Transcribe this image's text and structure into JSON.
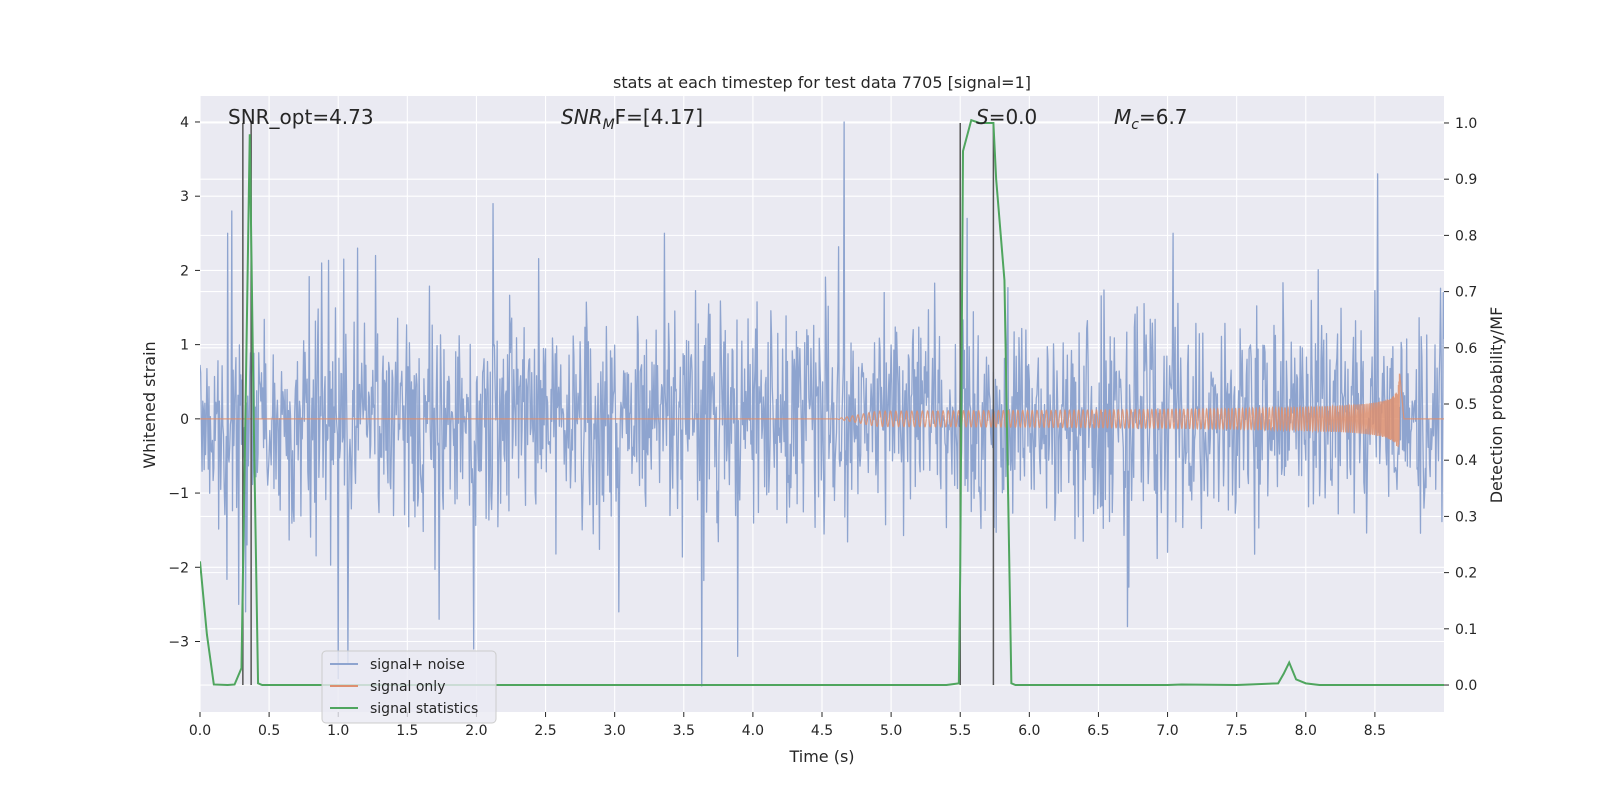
{
  "chart_data": {
    "type": "line",
    "title": "stats at each timestep for test data 7705 [signal=1]",
    "xlabel": "Time (s)",
    "ylabel": "Whitened strain",
    "y2label": "Detection probability/MF",
    "xlim": [
      0.0,
      9.0
    ],
    "ylim": [
      -3.95,
      4.35
    ],
    "y2lim": [
      -0.048,
      1.048
    ],
    "x_ticks": [
      "0.0",
      "0.5",
      "1.0",
      "1.5",
      "2.0",
      "2.5",
      "3.0",
      "3.5",
      "4.0",
      "4.5",
      "5.0",
      "5.5",
      "6.0",
      "6.5",
      "7.0",
      "7.5",
      "8.0",
      "8.5"
    ],
    "x_tick_values": [
      0.0,
      0.5,
      1.0,
      1.5,
      2.0,
      2.5,
      3.0,
      3.5,
      4.0,
      4.5,
      5.0,
      5.5,
      6.0,
      6.5,
      7.0,
      7.5,
      8.0,
      8.5
    ],
    "y_ticks": [
      "−3",
      "−2",
      "−1",
      "0",
      "1",
      "2",
      "3",
      "4"
    ],
    "y_tick_values": [
      -3,
      -2,
      -1,
      0,
      1,
      2,
      3,
      4
    ],
    "y2_ticks": [
      "0.0",
      "0.1",
      "0.2",
      "0.3",
      "0.4",
      "0.5",
      "0.6",
      "0.7",
      "0.8",
      "0.9",
      "1.0"
    ],
    "y2_tick_values": [
      0.0,
      0.1,
      0.2,
      0.3,
      0.4,
      0.5,
      0.6,
      0.7,
      0.8,
      0.9,
      1.0
    ],
    "annotations": {
      "snr_opt": "SNR_opt=4.73",
      "snr_mf_sym": "SNR",
      "snr_mf_sub": "M",
      "snr_mf_tail": "F=[4.17]",
      "s_sym": "S",
      "s_val": "=0.0",
      "mc_sym": "M",
      "mc_sub": "c",
      "mc_val": "=6.7"
    },
    "legend": {
      "placement": "lower-left",
      "entries": [
        "signal+ noise",
        "signal only",
        "signal statistics"
      ]
    },
    "colors": {
      "noise": "#8ea4cf",
      "signal": "#dd8f6f",
      "stats": "#4fa55e",
      "vline": "#555555",
      "plot_bg": "#eaeaf2",
      "grid": "#ffffff"
    },
    "vertical_lines_x": [
      0.31,
      0.37,
      5.5,
      5.74
    ],
    "noise": {
      "fs": 200,
      "sigma": 0.72,
      "spike_x": [
        0.2,
        0.23,
        0.28,
        0.33,
        0.88,
        1.0,
        1.07,
        1.14,
        1.27,
        1.73,
        1.98,
        2.12,
        3.03,
        3.36,
        3.63,
        3.89,
        4.66,
        5.55,
        6.71,
        7.04,
        8.52
      ],
      "spike_y": [
        2.5,
        2.8,
        -2.5,
        -2.6,
        2.1,
        -3.5,
        -3.3,
        2.3,
        2.2,
        -2.7,
        -3.1,
        2.9,
        -2.6,
        2.5,
        -3.6,
        -3.2,
        4.0,
        2.7,
        -2.8,
        2.5,
        3.3
      ]
    },
    "signal_only": {
      "start": 4.6,
      "end": 8.68,
      "max_amp": 0.62
    },
    "series": [
      {
        "name": "signal statistics",
        "axis": "right",
        "x": [
          0.0,
          0.05,
          0.1,
          0.2,
          0.25,
          0.3,
          0.33,
          0.36,
          0.39,
          0.42,
          0.45,
          0.5,
          1.0,
          2.0,
          3.0,
          4.0,
          5.0,
          5.4,
          5.49,
          5.5,
          5.52,
          5.58,
          5.64,
          5.7,
          5.74,
          5.76,
          5.82,
          5.87,
          5.9,
          6.0,
          7.0,
          7.1,
          7.5,
          7.8,
          7.84,
          7.88,
          7.93,
          8.0,
          8.1,
          8.3,
          9.0
        ],
        "y": [
          0.22,
          0.09,
          0.001,
          0.0,
          0.001,
          0.03,
          0.5,
          0.98,
          0.45,
          0.003,
          0.0,
          0.0,
          0.0,
          0.0,
          0.0,
          0.0,
          0.0,
          0.0,
          0.003,
          0.2,
          0.95,
          1.005,
          1.0,
          1.0,
          1.0,
          0.9,
          0.72,
          0.003,
          0.0,
          0.0,
          0.0,
          0.001,
          0.0,
          0.003,
          0.02,
          0.04,
          0.01,
          0.003,
          0.0,
          0.0,
          0.0
        ]
      }
    ]
  }
}
